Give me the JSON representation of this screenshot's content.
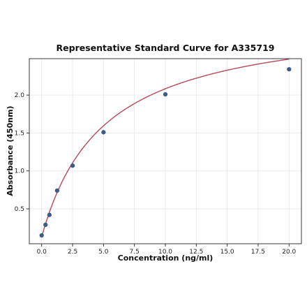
{
  "chart_data": {
    "type": "scatter",
    "title": "Representative Standard Curve for A335719",
    "xlabel": "Concentration (ng/ml)",
    "ylabel": "Absorbance (450nm)",
    "xlim": [
      -1.0,
      21.0
    ],
    "ylim": [
      0.04,
      2.48
    ],
    "x_ticks": [
      "0.0",
      "2.5",
      "5.0",
      "7.5",
      "10.0",
      "12.5",
      "15.0",
      "17.5",
      "20.0"
    ],
    "y_ticks": [
      "0.5",
      "1.0",
      "1.5",
      "2.0"
    ],
    "grid": true,
    "points": {
      "x": [
        0.0,
        0.313,
        0.625,
        1.25,
        2.5,
        5.0,
        10.0,
        20.0
      ],
      "y": [
        0.15,
        0.29,
        0.42,
        0.74,
        1.07,
        1.51,
        2.01,
        2.34
      ]
    },
    "fit": {
      "model": "hyperbolic",
      "a": 2.93,
      "b": 5.0,
      "c": 0.13
    },
    "colors": {
      "points": "#3a5f8f",
      "curve": "#b5495b",
      "grid": "#e6e6e6"
    }
  }
}
